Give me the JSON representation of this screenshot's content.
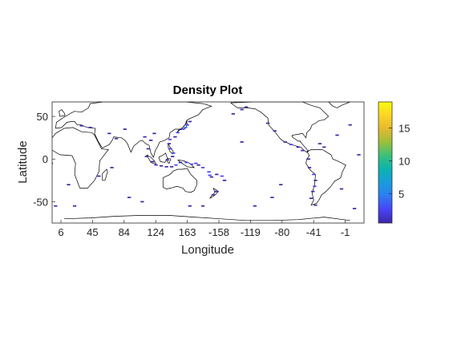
{
  "chart_data": {
    "type": "heatmap",
    "title": "Density Plot",
    "xlabel": "Longitude",
    "ylabel": "Latitude",
    "x_center": 163,
    "xlim": [
      -177,
      183
    ],
    "ylim": [
      -75,
      67
    ],
    "x_ticks": [
      6,
      45,
      84,
      124,
      163,
      -158,
      -119,
      -80,
      -41,
      -1
    ],
    "y_ticks": [
      50,
      0,
      -50
    ],
    "colorbar": {
      "min": 0.5,
      "max": 19,
      "ticks": [
        5,
        10,
        15
      ],
      "colormap": [
        "#3e26a8",
        "#4743f6",
        "#2e7bf1",
        "#1a9cdc",
        "#0bb3b0",
        "#39c07c",
        "#9bc039",
        "#e5b92f",
        "#fbd524",
        "#f9fb0e"
      ]
    },
    "cells": [
      {
        "lon": 137,
        "lat": 35,
        "v": 4
      },
      {
        "lon": 140,
        "lat": 37,
        "v": 5
      },
      {
        "lon": 142,
        "lat": 40,
        "v": 3
      },
      {
        "lon": 145,
        "lat": 44,
        "v": 2
      },
      {
        "lon": 131,
        "lat": 31,
        "v": 3
      },
      {
        "lon": 128,
        "lat": 26,
        "v": 2
      },
      {
        "lon": 122,
        "lat": 23,
        "v": 3
      },
      {
        "lon": 121,
        "lat": 18,
        "v": 2
      },
      {
        "lon": 122,
        "lat": 12,
        "v": 3
      },
      {
        "lon": 126,
        "lat": 7,
        "v": 4
      },
      {
        "lon": 125,
        "lat": 3,
        "v": 2
      },
      {
        "lon": 119,
        "lat": -1,
        "v": 1
      },
      {
        "lon": 102,
        "lat": -3,
        "v": 2
      },
      {
        "lon": 106,
        "lat": -7,
        "v": 3
      },
      {
        "lon": 112,
        "lat": -8,
        "v": 2
      },
      {
        "lon": 118,
        "lat": -9,
        "v": 2
      },
      {
        "lon": 124,
        "lat": -9,
        "v": 2
      },
      {
        "lon": 129,
        "lat": -7,
        "v": 3
      },
      {
        "lon": 134,
        "lat": -4,
        "v": 2
      },
      {
        "lon": 141,
        "lat": -4,
        "v": 3
      },
      {
        "lon": 147,
        "lat": -6,
        "v": 4
      },
      {
        "lon": 152,
        "lat": -5,
        "v": 3
      },
      {
        "lon": 155,
        "lat": -7,
        "v": 2
      },
      {
        "lon": 160,
        "lat": -10,
        "v": 3
      },
      {
        "lon": 167,
        "lat": -15,
        "v": 4
      },
      {
        "lon": 168,
        "lat": -19,
        "v": 3
      },
      {
        "lon": 170,
        "lat": -21,
        "v": 2
      },
      {
        "lon": 176,
        "lat": -18,
        "v": 2
      },
      {
        "lon": -178,
        "lat": -20,
        "v": 3
      },
      {
        "lon": -175,
        "lat": -25,
        "v": 2
      },
      {
        "lon": 175,
        "lat": -38,
        "v": 2
      },
      {
        "lon": 172,
        "lat": -42,
        "v": 1
      },
      {
        "lon": 95,
        "lat": 3,
        "v": 2
      },
      {
        "lon": 97,
        "lat": 12,
        "v": 1
      },
      {
        "lon": 100,
        "lat": 22,
        "v": 1
      },
      {
        "lon": 104,
        "lat": 30,
        "v": 1
      },
      {
        "lon": 93,
        "lat": 26,
        "v": 1
      },
      {
        "lon": 70,
        "lat": 35,
        "v": 1
      },
      {
        "lon": 52,
        "lat": 30,
        "v": 1
      },
      {
        "lon": 30,
        "lat": 37,
        "v": 1
      },
      {
        "lon": 20,
        "lat": 39,
        "v": 1
      },
      {
        "lon": 60,
        "lat": 24,
        "v": 1
      },
      {
        "lon": 40,
        "lat": -20,
        "v": 1
      },
      {
        "lon": 55,
        "lat": -10,
        "v": 1
      },
      {
        "lon": 75,
        "lat": -45,
        "v": 1
      },
      {
        "lon": 90,
        "lat": -50,
        "v": 1
      },
      {
        "lon": 12,
        "lat": -55,
        "v": 1
      },
      {
        "lon": 5,
        "lat": -30,
        "v": 1
      },
      {
        "lon": 145,
        "lat": -55,
        "v": 1
      },
      {
        "lon": 160,
        "lat": -55,
        "v": 1
      },
      {
        "lon": -155,
        "lat": 20,
        "v": 2
      },
      {
        "lon": -155,
        "lat": 58,
        "v": 2
      },
      {
        "lon": -165,
        "lat": 53,
        "v": 1
      },
      {
        "lon": -150,
        "lat": 61,
        "v": 2
      },
      {
        "lon": -125,
        "lat": 42,
        "v": 2
      },
      {
        "lon": -117,
        "lat": 33,
        "v": 2
      },
      {
        "lon": -105,
        "lat": 20,
        "v": 2
      },
      {
        "lon": -98,
        "lat": 17,
        "v": 3
      },
      {
        "lon": -90,
        "lat": 14,
        "v": 2
      },
      {
        "lon": -85,
        "lat": 10,
        "v": 2
      },
      {
        "lon": -78,
        "lat": 0,
        "v": 2
      },
      {
        "lon": -77,
        "lat": -10,
        "v": 2
      },
      {
        "lon": -72,
        "lat": -18,
        "v": 3
      },
      {
        "lon": -70,
        "lat": -25,
        "v": 2
      },
      {
        "lon": -71,
        "lat": -32,
        "v": 3
      },
      {
        "lon": -73,
        "lat": -38,
        "v": 2
      },
      {
        "lon": -75,
        "lat": -46,
        "v": 2
      },
      {
        "lon": -70,
        "lat": -54,
        "v": 1
      },
      {
        "lon": -65,
        "lat": 18,
        "v": 1
      },
      {
        "lon": -60,
        "lat": 14,
        "v": 1
      },
      {
        "lon": -45,
        "lat": 28,
        "v": 1
      },
      {
        "lon": -30,
        "lat": 40,
        "v": 1
      },
      {
        "lon": -20,
        "lat": 5,
        "v": 1
      },
      {
        "lon": -15,
        "lat": -5,
        "v": 1
      },
      {
        "lon": -40,
        "lat": -35,
        "v": 1
      },
      {
        "lon": -25,
        "lat": -58,
        "v": 1
      },
      {
        "lon": -10,
        "lat": -55,
        "v": 1
      },
      {
        "lon": -120,
        "lat": -45,
        "v": 1
      },
      {
        "lon": -140,
        "lat": -55,
        "v": 1
      },
      {
        "lon": -110,
        "lat": -30,
        "v": 1
      }
    ]
  }
}
